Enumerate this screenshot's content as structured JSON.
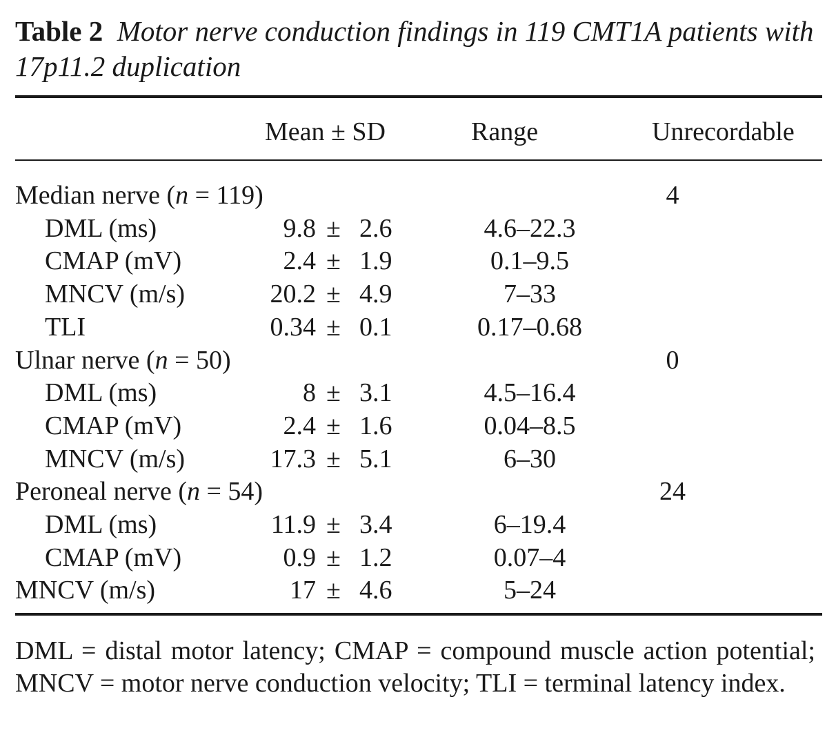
{
  "caption": {
    "label": "Table 2",
    "title": "Motor nerve conduction findings in 119 CMT1A patients with 17p11.2 duplication"
  },
  "header": {
    "mean_sd": "Mean ± SD",
    "range": "Range",
    "unrecordable": "Unrecordable"
  },
  "rows": [
    {
      "label_pre": "Median nerve (",
      "n_symbol": "n",
      "label_post": " = 119)",
      "indent": false,
      "mean": "",
      "pm": "",
      "sd": "",
      "range": "",
      "unrecordable": "4"
    },
    {
      "label": "DML (ms)",
      "indent": true,
      "mean": "9.8",
      "pm": "±",
      "sd": "2.6",
      "range": "4.6–22.3",
      "unrecordable": ""
    },
    {
      "label": "CMAP (mV)",
      "indent": true,
      "mean": "2.4",
      "pm": "±",
      "sd": "1.9",
      "range": "0.1–9.5",
      "unrecordable": ""
    },
    {
      "label": "MNCV (m/s)",
      "indent": true,
      "mean": "20.2",
      "pm": "±",
      "sd": "4.9",
      "range": "7–33",
      "unrecordable": ""
    },
    {
      "label": "TLI",
      "indent": true,
      "mean": "0.34",
      "pm": "±",
      "sd": "0.1",
      "range": "0.17–0.68",
      "unrecordable": ""
    },
    {
      "label_pre": "Ulnar nerve (",
      "n_symbol": "n",
      "label_post": " = 50)",
      "indent": false,
      "mean": "",
      "pm": "",
      "sd": "",
      "range": "",
      "unrecordable": "0"
    },
    {
      "label": "DML (ms)",
      "indent": true,
      "mean": "8",
      "pm": "±",
      "sd": "3.1",
      "range": "4.5–16.4",
      "unrecordable": ""
    },
    {
      "label": "CMAP (mV)",
      "indent": true,
      "mean": "2.4",
      "pm": "±",
      "sd": "1.6",
      "range": "0.04–8.5",
      "unrecordable": ""
    },
    {
      "label": "MNCV (m/s)",
      "indent": true,
      "mean": "17.3",
      "pm": "±",
      "sd": "5.1",
      "range": "6–30",
      "unrecordable": ""
    },
    {
      "label_pre": "Peroneal nerve (",
      "n_symbol": "n",
      "label_post": " = 54)",
      "indent": false,
      "mean": "",
      "pm": "",
      "sd": "",
      "range": "",
      "unrecordable": "24"
    },
    {
      "label": "DML (ms)",
      "indent": true,
      "mean": "11.9",
      "pm": "±",
      "sd": "3.4",
      "range": "6–19.4",
      "unrecordable": ""
    },
    {
      "label": "CMAP (mV)",
      "indent": true,
      "mean": "0.9",
      "pm": "±",
      "sd": "1.2",
      "range": "0.07–4",
      "unrecordable": ""
    },
    {
      "label": "MNCV (m/s)",
      "indent": false,
      "mean": "17",
      "pm": "±",
      "sd": "4.6",
      "range": "5–24",
      "unrecordable": ""
    }
  ],
  "footnote": "DML = distal motor latency; CMAP = compound muscle action potential; MNCV = motor nerve conduction velocity; TLI = terminal latency index."
}
